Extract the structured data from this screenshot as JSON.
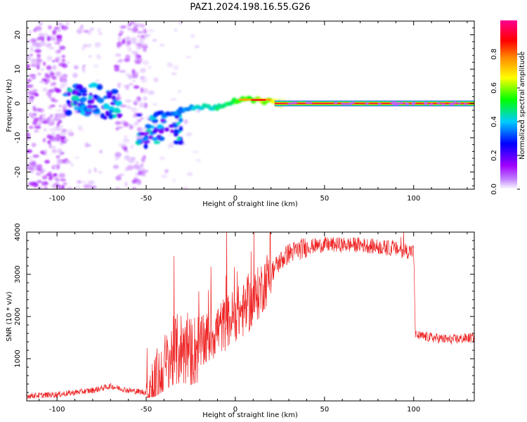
{
  "figure": {
    "title": "PAZ1.2024.198.16.55.G26"
  },
  "chart_data": [
    {
      "type": "heatmap",
      "xlabel": "Height of straight line (km)",
      "ylabel": "Frequency (Hz)",
      "xlim": [
        -117,
        134
      ],
      "ylim": [
        -25,
        24
      ],
      "xticks": [
        -100,
        -50,
        0,
        50,
        100
      ],
      "yticks": [
        20,
        10,
        0,
        -10,
        -20
      ],
      "colorbar": {
        "label": "Normalized spectral amplitude",
        "range": [
          0,
          1
        ],
        "ticks": [
          "0.0",
          "0.2",
          "0.4",
          "0.6",
          "0.8"
        ],
        "colors": [
          "#ffffff",
          "#a000ff",
          "#0000ff",
          "#00ccff",
          "#00ff00",
          "#ffff00",
          "#ff8800",
          "#ff0000",
          "#ff0090"
        ]
      },
      "ridge": [
        {
          "x": -90,
          "y": 1
        },
        {
          "x": -80,
          "y": 1
        },
        {
          "x": -70,
          "y": 0
        },
        {
          "x": -50,
          "y": -3
        },
        {
          "x": -40,
          "y": -3
        },
        {
          "x": -30,
          "y": -2
        },
        {
          "x": -20,
          "y": -1
        },
        {
          "x": -10,
          "y": -1
        },
        {
          "x": 0,
          "y": 1
        },
        {
          "x": 5,
          "y": 1
        },
        {
          "x": 10,
          "y": 1
        },
        {
          "x": 20,
          "y": 0.5
        },
        {
          "x": 25,
          "y": 0
        },
        {
          "x": 134,
          "y": 0
        }
      ]
    },
    {
      "type": "line",
      "xlabel": "Height of straight line (km)",
      "ylabel": "SNR (10 * v/v)",
      "xlim": [
        -117,
        134
      ],
      "ylim": [
        0,
        4000
      ],
      "xticks": [
        -100,
        -50,
        0,
        50,
        100
      ],
      "yticks": [
        1000,
        2000,
        3000,
        4000
      ],
      "series": [
        {
          "color": "#ee2222",
          "x": [
            -117,
            -100,
            -80,
            -70,
            -60,
            -50,
            -45,
            -40,
            -35,
            -30,
            -25,
            -20,
            -15,
            -10,
            -5,
            0,
            5,
            10,
            15,
            20,
            25,
            30,
            40,
            50,
            60,
            70,
            80,
            90,
            95,
            100,
            101,
            110,
            120,
            134
          ],
          "values": [
            120,
            150,
            250,
            350,
            250,
            200,
            300,
            700,
            1100,
            1250,
            1100,
            1300,
            1500,
            1700,
            1850,
            2050,
            2150,
            2350,
            2700,
            3050,
            3300,
            3500,
            3650,
            3700,
            3700,
            3700,
            3650,
            3600,
            3550,
            3550,
            1550,
            1500,
            1450,
            1500
          ]
        }
      ]
    }
  ]
}
